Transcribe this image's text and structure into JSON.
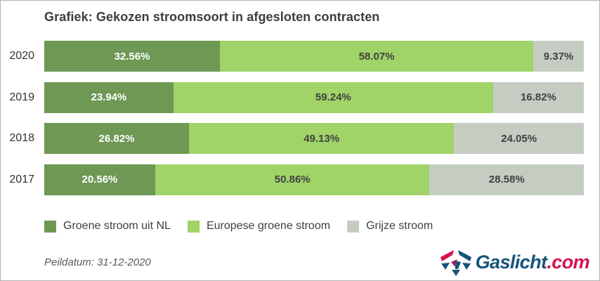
{
  "title": "Grafiek: Gekozen stroomsoort in afgesloten contracten",
  "footer": {
    "peildatum": "Peildatum: 31-12-2020"
  },
  "logo": {
    "name": "Gaslicht",
    "tld": ".com",
    "blue": "#175379",
    "red": "#d4124e"
  },
  "colors": {
    "dark_green": "#6e9854",
    "light_green": "#a0d368",
    "grey": "#c5cdc3",
    "label_on_dark": "#ffffff",
    "label_on_light": "#414141",
    "title_text": "#3d3d3d",
    "border": "#b3b3b3"
  },
  "chart_data": {
    "type": "bar",
    "orientation": "horizontal",
    "stacked": true,
    "title": "Grafiek: Gekozen stroomsoort in afgesloten contracten",
    "categories": [
      "2020",
      "2019",
      "2018",
      "2017"
    ],
    "series": [
      {
        "name": "Groene stroom uit NL",
        "color": "#6e9854",
        "text_color": "#ffffff",
        "values": [
          32.56,
          23.94,
          26.82,
          20.56
        ]
      },
      {
        "name": "Europese groene stroom",
        "color": "#a0d368",
        "text_color": "#414141",
        "values": [
          58.07,
          59.24,
          49.13,
          50.86
        ]
      },
      {
        "name": "Grijze stroom",
        "color": "#c5cdc3",
        "text_color": "#414141",
        "values": [
          9.37,
          16.82,
          24.05,
          28.58
        ]
      }
    ],
    "value_suffix": "%",
    "value_decimals": 2,
    "xlim": [
      0,
      100
    ],
    "grid": false,
    "legend_position": "bottom",
    "annotation": "Peildatum: 31-12-2020"
  }
}
